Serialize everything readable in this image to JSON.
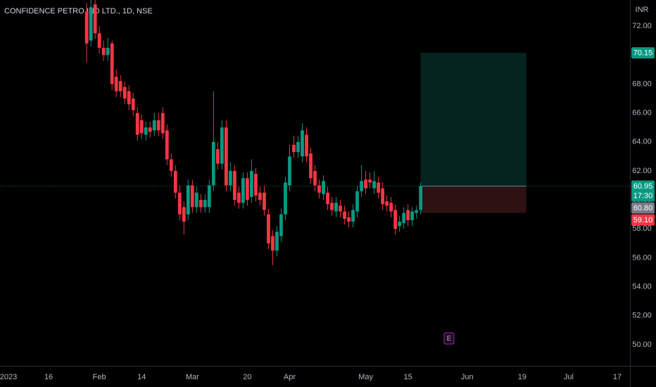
{
  "chart_data": {
    "type": "candlestick",
    "title": "CONFIDENCE PETRO IND LTD., 1D, NSE",
    "currency": "INR",
    "x": [
      0,
      1,
      2,
      3,
      4,
      5,
      6,
      7,
      8,
      9,
      10,
      11,
      12,
      13,
      14,
      15,
      16,
      17,
      18,
      19,
      20,
      21,
      22,
      23,
      24,
      25,
      26,
      27,
      28,
      29,
      30,
      31,
      32,
      33,
      34,
      35,
      36,
      37,
      38,
      39,
      40,
      41,
      42,
      43,
      44,
      45,
      46,
      47,
      48,
      49,
      50,
      51,
      52,
      53,
      54,
      55,
      56,
      57,
      58,
      59,
      60,
      61,
      62,
      63,
      64,
      65,
      66,
      67,
      68,
      69,
      70,
      71,
      72,
      73,
      74,
      75,
      76,
      77,
      78,
      79
    ],
    "open": [
      73.0,
      71.0,
      73.5,
      71.5,
      70.5,
      70.0,
      70.8,
      68.5,
      68.2,
      67.8,
      67.5,
      67.0,
      66.0,
      65.5,
      64.5,
      65.0,
      64.8,
      65.5,
      66.0,
      64.8,
      62.8,
      62.0,
      60.5,
      59.5,
      59.0,
      61.0,
      59.5,
      60.0,
      59.5,
      59.5,
      61.0,
      63.5,
      62.5,
      65.0,
      61.0,
      62.0,
      60.5,
      59.8,
      61.5,
      60.2,
      61.8,
      60.5,
      60.5,
      59.0,
      57.5,
      56.5,
      57.5,
      59.0,
      61.0,
      63.8,
      63.3,
      63.0,
      64.5,
      63.2,
      62.0,
      61.0,
      60.4,
      60.5,
      59.8,
      59.2,
      59.6,
      59.2,
      58.8,
      58.5,
      59.2,
      60.6,
      61.4,
      61.4,
      60.8,
      61.2,
      60.8,
      59.9,
      59.8,
      59.3,
      58.2,
      58.4,
      59.3,
      58.6,
      59.1,
      59.3
    ],
    "high": [
      73.6,
      73.8,
      73.8,
      72.0,
      71.0,
      71.2,
      71.0,
      69.0,
      68.6,
      68.2,
      67.9,
      67.4,
      66.4,
      65.9,
      65.4,
      65.4,
      66.0,
      66.0,
      66.4,
      65.2,
      63.2,
      62.4,
      61.0,
      59.9,
      61.4,
      61.4,
      60.9,
      60.4,
      60.4,
      61.4,
      67.5,
      64.0,
      65.5,
      65.5,
      62.6,
      62.4,
      60.9,
      61.9,
      61.9,
      62.8,
      62.2,
      60.9,
      61.0,
      59.4,
      57.9,
      58.2,
      59.4,
      61.6,
      63.8,
      64.4,
      64.4,
      65.3,
      65.0,
      63.6,
      62.4,
      61.4,
      61.7,
      60.9,
      60.2,
      60.2,
      60.0,
      59.6,
      59.2,
      59.7,
      61.0,
      62.4,
      62.0,
      61.9,
      62.0,
      61.6,
      61.2,
      60.3,
      60.2,
      59.7,
      58.9,
      59.5,
      59.7,
      59.5,
      59.6,
      61.2
    ],
    "low": [
      69.5,
      70.6,
      71.1,
      70.1,
      69.6,
      69.6,
      67.6,
      67.1,
      67.1,
      66.6,
      66.2,
      65.8,
      64.1,
      64.2,
      64.1,
      64.3,
      64.4,
      64.4,
      64.2,
      62.4,
      61.6,
      60.1,
      58.6,
      57.6,
      58.6,
      59.1,
      59.1,
      59.1,
      59.1,
      59.1,
      60.6,
      62.1,
      62.1,
      60.6,
      60.6,
      59.6,
      59.4,
      59.4,
      59.6,
      59.8,
      59.9,
      59.6,
      58.9,
      56.6,
      55.5,
      56.1,
      57.1,
      58.6,
      60.6,
      62.9,
      62.9,
      62.6,
      62.6,
      61.1,
      60.6,
      60.1,
      60.0,
      59.3,
      58.9,
      58.8,
      58.8,
      58.3,
      58.1,
      58.1,
      58.8,
      60.2,
      60.4,
      60.8,
      60.4,
      60.1,
      59.3,
      59.2,
      58.8,
      57.6,
      57.8,
      58.0,
      58.2,
      58.2,
      58.7,
      59.0
    ],
    "close": [
      70.8,
      73.3,
      71.5,
      70.5,
      70.0,
      70.5,
      68.0,
      67.5,
      67.5,
      67.0,
      66.6,
      66.2,
      64.5,
      64.6,
      65.0,
      64.7,
      65.5,
      64.8,
      64.6,
      62.8,
      62.0,
      60.5,
      59.0,
      58.5,
      61.0,
      59.5,
      60.5,
      59.5,
      60.0,
      61.0,
      64.0,
      62.5,
      65.0,
      61.0,
      62.0,
      60.0,
      59.8,
      61.5,
      60.0,
      62.0,
      60.3,
      60.0,
      59.3,
      57.0,
      56.5,
      57.8,
      59.0,
      61.2,
      63.0,
      63.3,
      64.0,
      64.8,
      63.0,
      61.5,
      61.0,
      60.5,
      61.3,
      59.7,
      59.3,
      59.8,
      59.2,
      58.7,
      58.5,
      59.3,
      60.6,
      61.3,
      60.8,
      61.2,
      61.3,
      60.5,
      59.7,
      59.6,
      59.2,
      58.0,
      58.5,
      59.1,
      58.6,
      59.2,
      59.3,
      60.95
    ],
    "up_color": "#089981",
    "down_color": "#f23645",
    "xlim": [
      -20.5,
      128.5
    ],
    "xticks": [
      {
        "value": -18.5,
        "label": "2023"
      },
      {
        "value": -9,
        "label": "16"
      },
      {
        "value": 3,
        "label": "Feb"
      },
      {
        "value": 13,
        "label": "14"
      },
      {
        "value": 25,
        "label": "Mar"
      },
      {
        "value": 38,
        "label": "20"
      },
      {
        "value": 48,
        "label": "Apr"
      },
      {
        "value": 66,
        "label": "May"
      },
      {
        "value": 76,
        "label": "15"
      },
      {
        "value": 90,
        "label": "Jun"
      },
      {
        "value": 103,
        "label": "19"
      },
      {
        "value": 114,
        "label": "Jul"
      },
      {
        "value": 125.5,
        "label": "17"
      }
    ],
    "ylim": [
      48.54,
      73.8
    ],
    "yticks": [
      {
        "value": 50,
        "label": "50.00"
      },
      {
        "value": 52,
        "label": "52.00"
      },
      {
        "value": 54,
        "label": "54.00"
      },
      {
        "value": 56,
        "label": "56.00"
      },
      {
        "value": 58,
        "label": "58.00"
      },
      {
        "value": 60,
        "label": "60.00"
      },
      {
        "value": 62,
        "label": "62.00"
      },
      {
        "value": 64,
        "label": "64.00"
      },
      {
        "value": 66,
        "label": "66.00"
      },
      {
        "value": 68,
        "label": "68.00"
      },
      {
        "value": 70,
        "label": "70.00"
      },
      {
        "value": 72,
        "label": "72.00"
      }
    ],
    "position": {
      "x": [
        79,
        104
      ],
      "target": 70.15,
      "entry": 60.95,
      "stop": 59.1,
      "profit_color": "#06241f",
      "loss_color": "#2e1113"
    },
    "price_labels": [
      {
        "value": 70.15,
        "label": "70.15",
        "color": "#089981"
      },
      {
        "value": 60.95,
        "label": "60.95",
        "color": "#089981",
        "countdown": "17:30"
      },
      {
        "value": 60.8,
        "label": "60.80",
        "color": "#787b86"
      },
      {
        "value": 59.1,
        "label": "59.10",
        "color": "#f23645"
      }
    ],
    "events": [
      {
        "x": 85.7,
        "label": "E"
      }
    ]
  }
}
